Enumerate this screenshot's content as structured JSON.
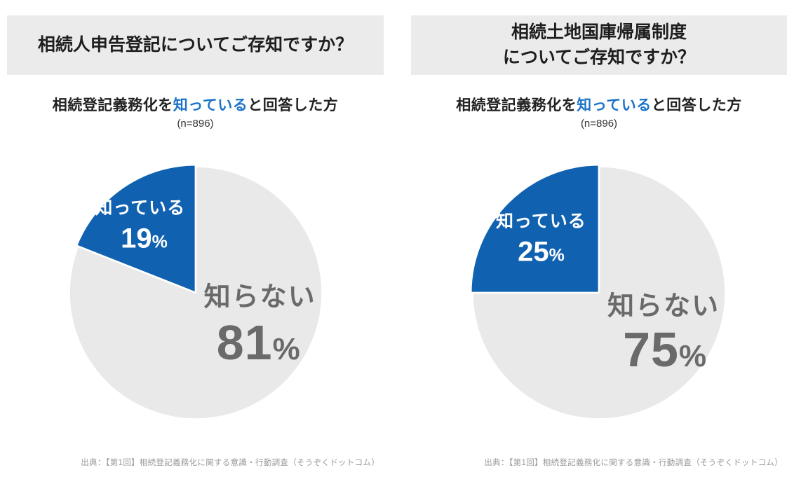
{
  "colors": {
    "pie_blue": "#1061b0",
    "pie_gray": "#e9e9ea",
    "subtitle_highlight_blue": "#1a73c8",
    "header_bg": "#ebebeb",
    "label_gray": "#6a6a6a"
  },
  "source_note": "出典：【第1回】相続登記義務化に関する意識・行動調査（そうぞくドットコム）",
  "percent_sign": "%",
  "charts": [
    {
      "title_line1": "相続人申告登記についてご存知ですか？",
      "title_line2": "",
      "subtitle_prefix": "相続登記義務化を",
      "subtitle_highlight": "知っている",
      "subtitle_suffix": "と回答した方",
      "sample_size": "(n=896)"
    },
    {
      "title_line1": "相続土地国庫帰属制度",
      "title_line2": "についてご存知ですか？",
      "subtitle_prefix": "相続登記義務化を",
      "subtitle_highlight": "知っている",
      "subtitle_suffix": "と回答した方",
      "sample_size": "(n=896)"
    }
  ],
  "chart_data": [
    {
      "type": "pie",
      "title": "相続人申告登記についてご存知ですか？",
      "subtitle": "相続登記義務化を知っていると回答した方",
      "sample_n": 896,
      "start_angle": "top",
      "direction": "counterclockwise",
      "legend_position": "none",
      "slices": [
        {
          "label": "知っている",
          "value": 19,
          "color": "#1061b0",
          "text_color": "#ffffff"
        },
        {
          "label": "知らない",
          "value": 81,
          "color": "#e9e9ea",
          "text_color": "#6a6a6a"
        }
      ]
    },
    {
      "type": "pie",
      "title": "相続土地国庫帰属制度についてご存知ですか？",
      "subtitle": "相続登記義務化を知っていると回答した方",
      "sample_n": 896,
      "start_angle": "top",
      "direction": "counterclockwise",
      "legend_position": "none",
      "slices": [
        {
          "label": "知っている",
          "value": 25,
          "color": "#1061b0",
          "text_color": "#ffffff"
        },
        {
          "label": "知らない",
          "value": 75,
          "color": "#e9e9ea",
          "text_color": "#6a6a6a"
        }
      ]
    }
  ]
}
